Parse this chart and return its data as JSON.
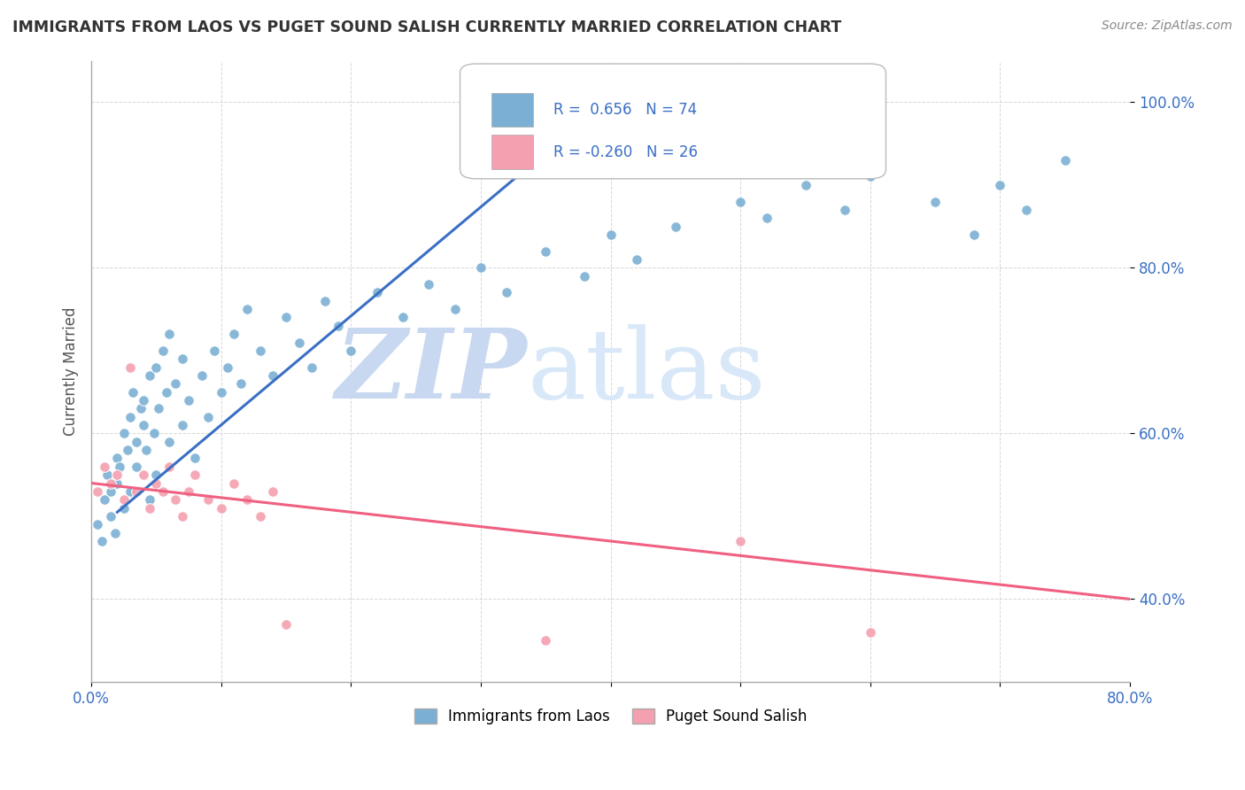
{
  "title": "IMMIGRANTS FROM LAOS VS PUGET SOUND SALISH CURRENTLY MARRIED CORRELATION CHART",
  "source": "Source: ZipAtlas.com",
  "ylabel": "Currently Married",
  "xlim": [
    0,
    80
  ],
  "ylim": [
    30,
    105
  ],
  "xticks": [
    0,
    10,
    20,
    30,
    40,
    50,
    60,
    70,
    80
  ],
  "xticklabels": [
    "0.0%",
    "",
    "",
    "",
    "",
    "",
    "",
    "",
    "80.0%"
  ],
  "yticks": [
    40,
    60,
    80,
    100
  ],
  "yticklabels": [
    "40.0%",
    "60.0%",
    "80.0%",
    "100.0%"
  ],
  "blue_R": 0.656,
  "blue_N": 74,
  "pink_R": -0.26,
  "pink_N": 26,
  "blue_color": "#7BAFD4",
  "pink_color": "#F4A0B0",
  "blue_line_color": "#3A6FC4",
  "pink_line_color": "#F06080",
  "blue_trend_x": [
    2.0,
    40.0
  ],
  "blue_trend_y": [
    50.5,
    100.5
  ],
  "pink_trend_x": [
    0.0,
    80.0
  ],
  "pink_trend_y": [
    54.0,
    40.0
  ],
  "blue_scatter_x": [
    0.5,
    0.8,
    1.0,
    1.2,
    1.5,
    1.5,
    1.8,
    2.0,
    2.0,
    2.2,
    2.5,
    2.5,
    2.8,
    3.0,
    3.0,
    3.2,
    3.5,
    3.5,
    3.8,
    4.0,
    4.0,
    4.2,
    4.5,
    4.5,
    4.8,
    5.0,
    5.0,
    5.2,
    5.5,
    5.8,
    6.0,
    6.0,
    6.5,
    7.0,
    7.0,
    7.5,
    8.0,
    8.5,
    9.0,
    9.5,
    10.0,
    10.5,
    11.0,
    11.5,
    12.0,
    13.0,
    14.0,
    15.0,
    16.0,
    17.0,
    18.0,
    19.0,
    20.0,
    22.0,
    24.0,
    26.0,
    28.0,
    30.0,
    32.0,
    35.0,
    38.0,
    40.0,
    42.0,
    45.0,
    50.0,
    52.0,
    55.0,
    58.0,
    60.0,
    65.0,
    68.0,
    70.0,
    72.0,
    75.0
  ],
  "blue_scatter_y": [
    49,
    47,
    52,
    55,
    53,
    50,
    48,
    54,
    57,
    56,
    51,
    60,
    58,
    53,
    62,
    65,
    59,
    56,
    63,
    61,
    64,
    58,
    67,
    52,
    60,
    55,
    68,
    63,
    70,
    65,
    59,
    72,
    66,
    61,
    69,
    64,
    57,
    67,
    62,
    70,
    65,
    68,
    72,
    66,
    75,
    70,
    67,
    74,
    71,
    68,
    76,
    73,
    70,
    77,
    74,
    78,
    75,
    80,
    77,
    82,
    79,
    84,
    81,
    85,
    88,
    86,
    90,
    87,
    91,
    88,
    84,
    90,
    87,
    93
  ],
  "pink_scatter_x": [
    0.5,
    1.0,
    1.5,
    2.0,
    2.5,
    3.0,
    3.5,
    4.0,
    4.5,
    5.0,
    5.5,
    6.0,
    6.5,
    7.0,
    7.5,
    8.0,
    9.0,
    10.0,
    11.0,
    12.0,
    13.0,
    14.0,
    15.0,
    35.0,
    50.0,
    60.0
  ],
  "pink_scatter_y": [
    53,
    56,
    54,
    55,
    52,
    68,
    53,
    55,
    51,
    54,
    53,
    56,
    52,
    50,
    53,
    55,
    52,
    51,
    54,
    52,
    50,
    53,
    37,
    35,
    47,
    36
  ],
  "legend_blue_label": "Immigrants from Laos",
  "legend_pink_label": "Puget Sound Salish"
}
